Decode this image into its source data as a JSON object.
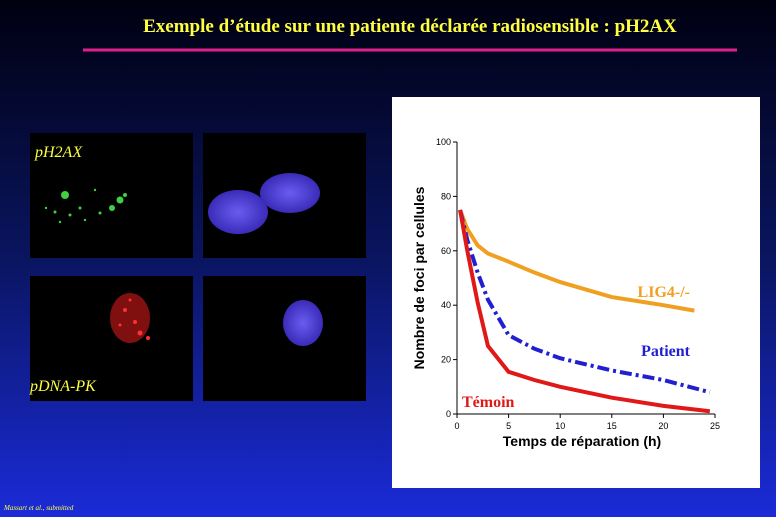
{
  "slide": {
    "title": "Exemple d’étude sur une patiente déclarée radiosensible : pH2AX",
    "image_labels": [
      "pH2AX",
      "pDNA-PK"
    ],
    "citation": "Massart et al., submitted"
  },
  "chart_data": {
    "type": "line",
    "y_label": "Nombre de foci par cellules",
    "x_label": "Temps de réparation (h)",
    "xlim": [
      0,
      25
    ],
    "xticks": [
      0,
      5,
      10,
      15,
      20,
      25
    ],
    "ylim": [
      0,
      100
    ],
    "yticks": [
      0,
      20,
      40,
      60,
      80,
      100
    ],
    "series": [
      {
        "name": "LIG4-/-",
        "color": "#f0a020",
        "style": "solid",
        "x": [
          0.3,
          1,
          2,
          3,
          5,
          7.5,
          10,
          15,
          20,
          23
        ],
        "values": [
          75,
          68,
          62,
          59,
          56,
          52,
          48.5,
          43,
          40,
          38
        ]
      },
      {
        "name": "Patient",
        "color": "#2020d0",
        "style": "dash-dot",
        "x": [
          0.3,
          1,
          2,
          3,
          5,
          7.5,
          10,
          15,
          20,
          24.5
        ],
        "values": [
          75,
          64,
          52,
          42,
          29,
          24,
          20.5,
          16,
          12.5,
          8
        ]
      },
      {
        "name": "Témoin",
        "color": "#e01818",
        "style": "solid",
        "x": [
          0.3,
          1,
          2,
          3,
          5,
          7.5,
          10,
          15,
          20,
          24.5
        ],
        "values": [
          75,
          60,
          41,
          25,
          15.5,
          12.5,
          10,
          6,
          3,
          1
        ]
      }
    ]
  }
}
